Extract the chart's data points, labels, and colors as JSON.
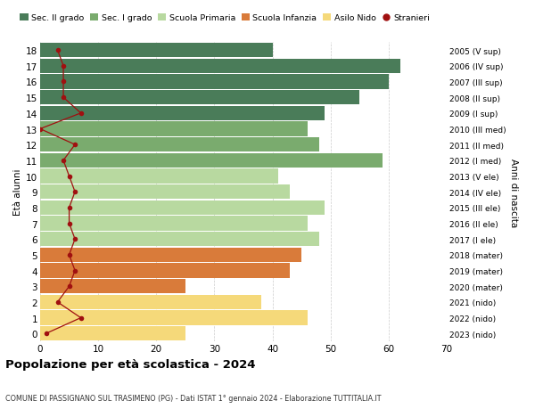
{
  "ages": [
    18,
    17,
    16,
    15,
    14,
    13,
    12,
    11,
    10,
    9,
    8,
    7,
    6,
    5,
    4,
    3,
    2,
    1,
    0
  ],
  "bar_values": [
    40,
    62,
    60,
    55,
    49,
    46,
    48,
    59,
    41,
    43,
    49,
    46,
    48,
    45,
    43,
    25,
    38,
    46,
    25
  ],
  "bar_colors": [
    "#4a7c59",
    "#4a7c59",
    "#4a7c59",
    "#4a7c59",
    "#4a7c59",
    "#7aab6e",
    "#7aab6e",
    "#7aab6e",
    "#b8d9a0",
    "#b8d9a0",
    "#b8d9a0",
    "#b8d9a0",
    "#b8d9a0",
    "#d97b3a",
    "#d97b3a",
    "#d97b3a",
    "#f5d97a",
    "#f5d97a",
    "#f5d97a"
  ],
  "right_labels": [
    "2005 (V sup)",
    "2006 (IV sup)",
    "2007 (III sup)",
    "2008 (II sup)",
    "2009 (I sup)",
    "2010 (III med)",
    "2011 (II med)",
    "2012 (I med)",
    "2013 (V ele)",
    "2014 (IV ele)",
    "2015 (III ele)",
    "2016 (II ele)",
    "2017 (I ele)",
    "2018 (mater)",
    "2019 (mater)",
    "2020 (mater)",
    "2021 (nido)",
    "2022 (nido)",
    "2023 (nido)"
  ],
  "stranieri_values": [
    3,
    4,
    4,
    4,
    7,
    0,
    6,
    4,
    5,
    6,
    5,
    5,
    6,
    5,
    6,
    5,
    3,
    7,
    1
  ],
  "legend_labels": [
    "Sec. II grado",
    "Sec. I grado",
    "Scuola Primaria",
    "Scuola Infanzia",
    "Asilo Nido",
    "Stranieri"
  ],
  "legend_colors": [
    "#4a7c59",
    "#7aab6e",
    "#b8d9a0",
    "#d97b3a",
    "#f5d97a",
    "#a01010"
  ],
  "title": "Popolazione per età scolastica - 2024",
  "subtitle": "COMUNE DI PASSIGNANO SUL TRASIMENO (PG) - Dati ISTAT 1° gennaio 2024 - Elaborazione TUTTITALIA.IT",
  "xlabel_right": "Anni di nascita",
  "ylabel": "Età alunni",
  "xlim": [
    0,
    70
  ],
  "xticks": [
    0,
    10,
    20,
    30,
    40,
    50,
    60,
    70
  ],
  "background_color": "#ffffff",
  "grid_color": "#cccccc"
}
